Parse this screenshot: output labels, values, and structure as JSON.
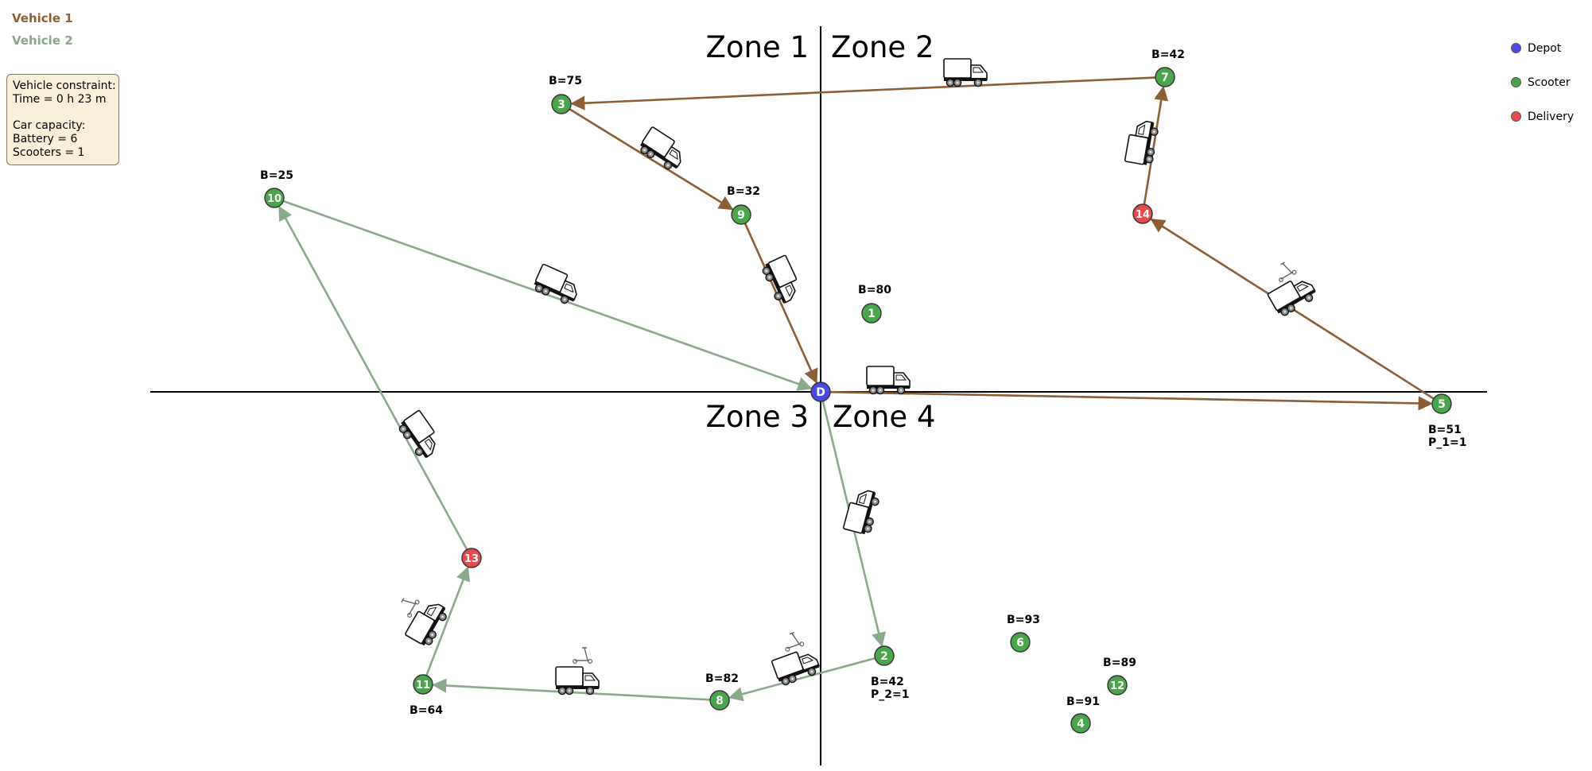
{
  "vehicles": [
    {
      "label": "Vehicle 1",
      "color": "#8b5e34"
    },
    {
      "label": "Vehicle 2",
      "color": "#8aa98a"
    }
  ],
  "constraints": {
    "line1": "Vehicle constraint:",
    "line2": "Time = 0 h 23 m",
    "line3": "Car capacity:",
    "line4": "Battery = 6",
    "line5": "Scooters = 1"
  },
  "legend": [
    {
      "label": "Depot",
      "color": "#4a4ae6"
    },
    {
      "label": "Scooter",
      "color": "#4aa64a"
    },
    {
      "label": "Delivery",
      "color": "#e64a4a"
    }
  ],
  "zones": {
    "z1": "Zone 1",
    "z2": "Zone 2",
    "z3": "Zone 3",
    "z4": "Zone 4"
  },
  "nodes": [
    {
      "id": "D",
      "kind": "depot",
      "label": "D",
      "note": []
    },
    {
      "id": "1",
      "kind": "scooter",
      "label": "1",
      "note": [
        "B=80"
      ]
    },
    {
      "id": "2",
      "kind": "scooter",
      "label": "2",
      "note": [
        "B=42",
        "P_2=1"
      ]
    },
    {
      "id": "3",
      "kind": "scooter",
      "label": "3",
      "note": [
        "B=75"
      ]
    },
    {
      "id": "4",
      "kind": "scooter",
      "label": "4",
      "note": [
        "B=91"
      ]
    },
    {
      "id": "5",
      "kind": "scooter",
      "label": "5",
      "note": [
        "B=51",
        "P_1=1"
      ]
    },
    {
      "id": "6",
      "kind": "scooter",
      "label": "6",
      "note": [
        "B=93"
      ]
    },
    {
      "id": "7",
      "kind": "scooter",
      "label": "7",
      "note": [
        "B=42"
      ]
    },
    {
      "id": "8",
      "kind": "scooter",
      "label": "8",
      "note": [
        "B=82"
      ]
    },
    {
      "id": "9",
      "kind": "scooter",
      "label": "9",
      "note": [
        "B=32"
      ]
    },
    {
      "id": "10",
      "kind": "scooter",
      "label": "10",
      "note": [
        "B=25"
      ]
    },
    {
      "id": "11",
      "kind": "scooter",
      "label": "11",
      "note": [
        "B=64"
      ]
    },
    {
      "id": "12",
      "kind": "scooter",
      "label": "12",
      "note": [
        "B=89"
      ]
    },
    {
      "id": "13",
      "kind": "delivery",
      "label": "13",
      "note": []
    },
    {
      "id": "14",
      "kind": "delivery",
      "label": "14",
      "note": []
    }
  ],
  "routes": [
    {
      "vehicle": 0,
      "path": [
        "D",
        "5",
        "14",
        "7",
        "3",
        "9",
        "D"
      ]
    },
    {
      "vehicle": 1,
      "path": [
        "D",
        "2",
        "8",
        "11",
        "13",
        "10",
        "D"
      ]
    }
  ],
  "truck_icons": [
    {
      "edge": [
        "D",
        "5"
      ],
      "icon": "truck-icon"
    },
    {
      "edge": [
        "5",
        "14"
      ],
      "icon": "truck-with-scooter-icon"
    },
    {
      "edge": [
        "14",
        "7"
      ],
      "icon": "truck-icon"
    },
    {
      "edge": [
        "7",
        "3"
      ],
      "icon": "truck-icon"
    },
    {
      "edge": [
        "3",
        "9"
      ],
      "icon": "truck-icon"
    },
    {
      "edge": [
        "9",
        "D"
      ],
      "icon": "truck-icon"
    },
    {
      "edge": [
        "D",
        "2"
      ],
      "icon": "truck-icon"
    },
    {
      "edge": [
        "2",
        "8"
      ],
      "icon": "truck-with-scooter-icon"
    },
    {
      "edge": [
        "8",
        "11"
      ],
      "icon": "truck-with-scooter-icon"
    },
    {
      "edge": [
        "11",
        "13"
      ],
      "icon": "truck-with-scooter-icon"
    },
    {
      "edge": [
        "13",
        "10"
      ],
      "icon": "truck-icon"
    },
    {
      "edge": [
        "10",
        "D"
      ],
      "icon": "truck-icon"
    }
  ]
}
